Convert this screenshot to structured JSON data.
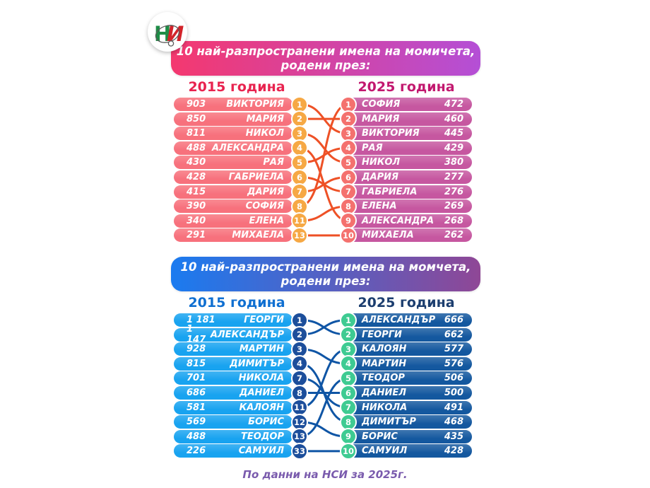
{
  "page": {
    "footer": "По данни на НСИ за 2025г.",
    "footer_color": "#7A5BAD",
    "background": "#FFFFFF"
  },
  "logo": {
    "letter1": "Н",
    "letter2": "И",
    "green": "#1E8C46",
    "red": "#D2232A",
    "ring": "#5A5A5A"
  },
  "sections": [
    {
      "id": "girls",
      "banner": {
        "line1": "10 най-разпространени имена на момичета,",
        "line2": "родени през:",
        "gradient_from": "#F4386F",
        "gradient_to": "#B44FD6"
      },
      "line_color": "#EE5126",
      "left": {
        "header": "2015 година",
        "header_color": "#E8234F",
        "pill_color": "#F7717C",
        "circle_color": "#F6A844",
        "rows": [
          {
            "count": "903",
            "name": "ВИКТОРИЯ",
            "rank": "1"
          },
          {
            "count": "850",
            "name": "МАРИЯ",
            "rank": "2"
          },
          {
            "count": "811",
            "name": "НИКОЛ",
            "rank": "3"
          },
          {
            "count": "488",
            "name": "АЛЕКСАНДРА",
            "rank": "4"
          },
          {
            "count": "430",
            "name": "РАЯ",
            "rank": "5"
          },
          {
            "count": "428",
            "name": "ГАБРИЕЛА",
            "rank": "6"
          },
          {
            "count": "415",
            "name": "ДАРИЯ",
            "rank": "7"
          },
          {
            "count": "390",
            "name": "СОФИЯ",
            "rank": "8"
          },
          {
            "count": "340",
            "name": "ЕЛЕНА",
            "rank": "11"
          },
          {
            "count": "291",
            "name": "МИХАЕЛА",
            "rank": "13"
          }
        ]
      },
      "right": {
        "header": "2025 година",
        "header_color": "#C2186F",
        "pill_color": "#C657A0",
        "circle_color": "#F4716E",
        "rows": [
          {
            "rank": "1",
            "name": "СОФИЯ",
            "count": "472"
          },
          {
            "rank": "2",
            "name": "МАРИЯ",
            "count": "460"
          },
          {
            "rank": "3",
            "name": "ВИКТОРИЯ",
            "count": "445"
          },
          {
            "rank": "4",
            "name": "РАЯ",
            "count": "429"
          },
          {
            "rank": "5",
            "name": "НИКОЛ",
            "count": "380"
          },
          {
            "rank": "6",
            "name": "ДАРИЯ",
            "count": "277"
          },
          {
            "rank": "7",
            "name": "ГАБРИЕЛА",
            "count": "276"
          },
          {
            "rank": "8",
            "name": "ЕЛЕНА",
            "count": "269"
          },
          {
            "rank": "9",
            "name": "АЛЕКСАНДРА",
            "count": "268"
          },
          {
            "rank": "10",
            "name": "МИХАЕЛА",
            "count": "262"
          }
        ]
      },
      "connections": [
        [
          0,
          2
        ],
        [
          1,
          1
        ],
        [
          2,
          4
        ],
        [
          3,
          8
        ],
        [
          4,
          3
        ],
        [
          5,
          6
        ],
        [
          6,
          5
        ],
        [
          7,
          0
        ],
        [
          8,
          7
        ],
        [
          9,
          9
        ]
      ]
    },
    {
      "id": "boys",
      "banner": {
        "line1": "10 най-разпространени имена на момчета,",
        "line2": "родени през:",
        "gradient_from": "#1A7BF0",
        "gradient_to": "#8F4796"
      },
      "line_color": "#0F55A5",
      "left": {
        "header": "2015 година",
        "header_color": "#0F6FD1",
        "pill_color": "#18A3F0",
        "circle_color": "#1C4E9B",
        "rows": [
          {
            "count": "1 181",
            "name": "ГЕОРГИ",
            "rank": "1"
          },
          {
            "count": "1 147",
            "name": "АЛЕКСАНДЪР",
            "rank": "2"
          },
          {
            "count": "928",
            "name": "МАРТИН",
            "rank": "3"
          },
          {
            "count": "815",
            "name": "ДИМИТЪР",
            "rank": "4"
          },
          {
            "count": "701",
            "name": "НИКОЛА",
            "rank": "7"
          },
          {
            "count": "686",
            "name": "ДАНИЕЛ",
            "rank": "8"
          },
          {
            "count": "581",
            "name": "КАЛОЯН",
            "rank": "11"
          },
          {
            "count": "569",
            "name": "БОРИС",
            "rank": "12"
          },
          {
            "count": "488",
            "name": "ТЕОДОР",
            "rank": "13"
          },
          {
            "count": "226",
            "name": "САМУИЛ",
            "rank": "33"
          }
        ]
      },
      "right": {
        "header": "2025 година",
        "header_color": "#1C3E6F",
        "pill_color": "#14589F",
        "circle_color": "#3ECB92",
        "rows": [
          {
            "rank": "1",
            "name": "АЛЕКСАНДЪР",
            "count": "666"
          },
          {
            "rank": "2",
            "name": "ГЕОРГИ",
            "count": "662"
          },
          {
            "rank": "3",
            "name": "КАЛОЯН",
            "count": "577"
          },
          {
            "rank": "4",
            "name": "МАРТИН",
            "count": "576"
          },
          {
            "rank": "5",
            "name": "ТЕОДОР",
            "count": "506"
          },
          {
            "rank": "6",
            "name": "ДАНИЕЛ",
            "count": "500"
          },
          {
            "rank": "7",
            "name": "НИКОЛА",
            "count": "491"
          },
          {
            "rank": "8",
            "name": "ДИМИТЪР",
            "count": "468"
          },
          {
            "rank": "9",
            "name": "БОРИС",
            "count": "435"
          },
          {
            "rank": "10",
            "name": "САМУИЛ",
            "count": "428"
          }
        ]
      },
      "connections": [
        [
          0,
          1
        ],
        [
          1,
          0
        ],
        [
          2,
          3
        ],
        [
          3,
          7
        ],
        [
          4,
          6
        ],
        [
          5,
          5
        ],
        [
          6,
          2
        ],
        [
          7,
          8
        ],
        [
          8,
          4
        ],
        [
          9,
          9
        ]
      ]
    }
  ],
  "chart_data": [
    {
      "type": "table",
      "title": "10 най-разпространени имена на момичета, родени през:",
      "columns": [
        "2015 година",
        "2025 година"
      ],
      "series": [
        {
          "name": "ВИКТОРИЯ",
          "count_2015": 903,
          "rank_2015": 1,
          "count_2025": 445,
          "rank_2025": 3
        },
        {
          "name": "МАРИЯ",
          "count_2015": 850,
          "rank_2015": 2,
          "count_2025": 460,
          "rank_2025": 2
        },
        {
          "name": "НИКОЛ",
          "count_2015": 811,
          "rank_2015": 3,
          "count_2025": 380,
          "rank_2025": 5
        },
        {
          "name": "АЛЕКСАНДРА",
          "count_2015": 488,
          "rank_2015": 4,
          "count_2025": 268,
          "rank_2025": 9
        },
        {
          "name": "РАЯ",
          "count_2015": 430,
          "rank_2015": 5,
          "count_2025": 429,
          "rank_2025": 4
        },
        {
          "name": "ГАБРИЕЛА",
          "count_2015": 428,
          "rank_2015": 6,
          "count_2025": 276,
          "rank_2025": 7
        },
        {
          "name": "ДАРИЯ",
          "count_2015": 415,
          "rank_2015": 7,
          "count_2025": 277,
          "rank_2025": 6
        },
        {
          "name": "СОФИЯ",
          "count_2015": 390,
          "rank_2015": 8,
          "count_2025": 472,
          "rank_2025": 1
        },
        {
          "name": "ЕЛЕНА",
          "count_2015": 340,
          "rank_2015": 11,
          "count_2025": 269,
          "rank_2025": 8
        },
        {
          "name": "МИХАЕЛА",
          "count_2015": 291,
          "rank_2015": 13,
          "count_2025": 262,
          "rank_2025": 10
        }
      ]
    },
    {
      "type": "table",
      "title": "10 най-разпространени имена на момчета, родени през:",
      "columns": [
        "2015 година",
        "2025 година"
      ],
      "series": [
        {
          "name": "ГЕОРГИ",
          "count_2015": 1181,
          "rank_2015": 1,
          "count_2025": 662,
          "rank_2025": 2
        },
        {
          "name": "АЛЕКСАНДЪР",
          "count_2015": 1147,
          "rank_2015": 2,
          "count_2025": 666,
          "rank_2025": 1
        },
        {
          "name": "МАРТИН",
          "count_2015": 928,
          "rank_2015": 3,
          "count_2025": 576,
          "rank_2025": 4
        },
        {
          "name": "ДИМИТЪР",
          "count_2015": 815,
          "rank_2015": 4,
          "count_2025": 468,
          "rank_2025": 8
        },
        {
          "name": "НИКОЛА",
          "count_2015": 701,
          "rank_2015": 7,
          "count_2025": 491,
          "rank_2025": 7
        },
        {
          "name": "ДАНИЕЛ",
          "count_2015": 686,
          "rank_2015": 8,
          "count_2025": 500,
          "rank_2025": 6
        },
        {
          "name": "КАЛОЯН",
          "count_2015": 581,
          "rank_2015": 11,
          "count_2025": 577,
          "rank_2025": 3
        },
        {
          "name": "БОРИС",
          "count_2015": 569,
          "rank_2015": 12,
          "count_2025": 435,
          "rank_2025": 9
        },
        {
          "name": "ТЕОДОР",
          "count_2015": 488,
          "rank_2015": 13,
          "count_2025": 506,
          "rank_2025": 5
        },
        {
          "name": "САМУИЛ",
          "count_2015": 226,
          "rank_2015": 33,
          "count_2025": 428,
          "rank_2025": 10
        }
      ]
    }
  ]
}
